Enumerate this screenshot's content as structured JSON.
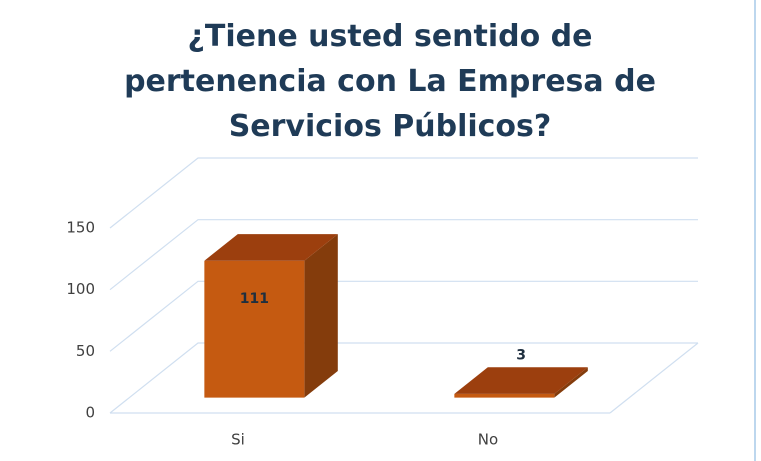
{
  "chart_data": {
    "type": "bar",
    "title": "¿Tiene usted sentido de pertenencia con La Empresa de Servicios Públicos?",
    "categories": [
      "Si",
      "No"
    ],
    "values": [
      111,
      3
    ],
    "color": "#c55a11",
    "ylim": [
      0,
      150
    ],
    "yticks": [
      0,
      50,
      100,
      150
    ],
    "grid": true
  }
}
